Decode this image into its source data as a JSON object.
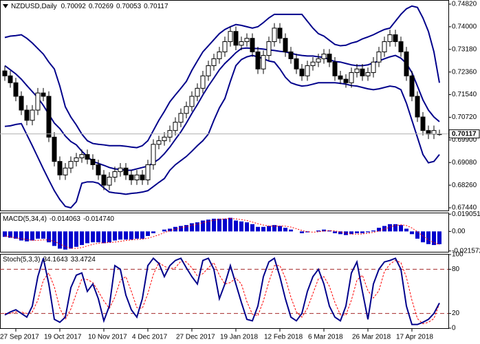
{
  "chart_data": [
    {
      "type": "candlestick",
      "title": "NZDUSD,Daily",
      "categories": [
        null,
        null,
        "27 Sep 2017",
        null,
        null,
        null,
        null,
        null,
        null,
        null,
        "19 Oct 2017",
        null,
        null,
        null,
        null,
        null,
        null,
        null,
        "10 Nov 2017",
        null,
        null,
        null,
        null,
        null,
        null,
        null,
        "4 Dec 2017",
        null,
        null,
        null,
        null,
        null,
        null,
        null,
        "27 Dec 2017",
        null,
        null,
        null,
        null,
        null,
        null,
        null,
        "19 Jan 2018",
        null,
        null,
        null,
        null,
        null,
        null,
        null,
        "12 Feb 2018",
        null,
        null,
        null,
        null,
        null,
        null,
        null,
        "6 Mar 2018",
        null,
        null,
        null,
        null,
        null,
        null,
        null,
        "26 Mar 2018",
        null,
        null,
        null,
        null,
        null,
        null,
        null,
        "17 Apr 2018",
        null,
        null,
        null,
        null,
        null
      ],
      "open": [
        0.724,
        0.7222,
        0.7197,
        0.7148,
        0.7098,
        0.7061,
        0.7098,
        0.716,
        0.7148,
        0.7,
        0.6912,
        0.6863,
        0.6888,
        0.6912,
        0.6925,
        0.6937,
        0.692,
        0.69,
        0.6863,
        0.6826,
        0.6855,
        0.6875,
        0.6888,
        0.6863,
        0.6845,
        0.6863,
        0.6845,
        0.69,
        0.6974,
        0.6987,
        0.7,
        0.7024,
        0.7054,
        0.7086,
        0.7111,
        0.7148,
        0.7177,
        0.7222,
        0.7259,
        0.7284,
        0.7309,
        0.7346,
        0.7383,
        0.7333,
        0.7346,
        0.7358,
        0.7309,
        0.7247,
        0.7296,
        0.7346,
        0.7395,
        0.7358,
        0.7309,
        0.7284,
        0.7247,
        0.7222,
        0.7259,
        0.7272,
        0.7284,
        0.7301,
        0.7272,
        0.7222,
        0.721,
        0.7197,
        0.7234,
        0.7247,
        0.7222,
        0.7234,
        0.7272,
        0.7309,
        0.7346,
        0.7371,
        0.7346,
        0.7309,
        0.7222,
        0.7148,
        0.7073,
        0.7024,
        0.7011,
        0.70092
      ],
      "high": [
        0.7258,
        0.724,
        0.7215,
        0.7166,
        0.7116,
        0.7116,
        0.7178,
        0.7178,
        0.7166,
        0.7018,
        0.693,
        0.6906,
        0.693,
        0.6943,
        0.6955,
        0.6955,
        0.6938,
        0.6918,
        0.6881,
        0.6873,
        0.6893,
        0.6906,
        0.6906,
        0.6881,
        0.6881,
        0.6881,
        0.6918,
        0.6992,
        0.7005,
        0.7018,
        0.7042,
        0.7072,
        0.7104,
        0.7129,
        0.7166,
        0.7195,
        0.724,
        0.7277,
        0.7302,
        0.7327,
        0.7364,
        0.7401,
        0.7401,
        0.7364,
        0.7376,
        0.7376,
        0.7327,
        0.7314,
        0.7364,
        0.7413,
        0.7413,
        0.7376,
        0.7327,
        0.7302,
        0.7265,
        0.7277,
        0.729,
        0.7302,
        0.7319,
        0.7319,
        0.729,
        0.724,
        0.7228,
        0.7252,
        0.7265,
        0.7265,
        0.7252,
        0.729,
        0.7327,
        0.7364,
        0.7389,
        0.7389,
        0.7364,
        0.7327,
        0.724,
        0.7166,
        0.7091,
        0.7042,
        0.7042,
        0.70269
      ],
      "low": [
        0.7204,
        0.7179,
        0.713,
        0.708,
        0.7043,
        0.7043,
        0.708,
        0.713,
        0.6982,
        0.6894,
        0.6845,
        0.6845,
        0.687,
        0.6894,
        0.6907,
        0.6902,
        0.6882,
        0.6845,
        0.6808,
        0.6808,
        0.6837,
        0.6857,
        0.6845,
        0.6827,
        0.6827,
        0.6827,
        0.6827,
        0.6882,
        0.6956,
        0.6969,
        0.6982,
        0.7006,
        0.7036,
        0.7068,
        0.7093,
        0.713,
        0.7159,
        0.7204,
        0.7241,
        0.7266,
        0.7291,
        0.7328,
        0.7315,
        0.7315,
        0.7328,
        0.7291,
        0.7229,
        0.7229,
        0.7278,
        0.7328,
        0.734,
        0.7291,
        0.7266,
        0.7229,
        0.7204,
        0.7204,
        0.7241,
        0.7254,
        0.7266,
        0.7254,
        0.7204,
        0.7192,
        0.7179,
        0.7179,
        0.7216,
        0.7204,
        0.7204,
        0.7216,
        0.7254,
        0.7291,
        0.7328,
        0.7328,
        0.7291,
        0.7204,
        0.713,
        0.7055,
        0.7006,
        0.6993,
        0.6993,
        0.70053
      ],
      "close": [
        0.7222,
        0.7197,
        0.7148,
        0.7098,
        0.7061,
        0.7098,
        0.716,
        0.7148,
        0.7,
        0.6912,
        0.6863,
        0.6888,
        0.6912,
        0.6925,
        0.6937,
        0.692,
        0.69,
        0.6863,
        0.6826,
        0.6855,
        0.6875,
        0.6888,
        0.6863,
        0.6845,
        0.6863,
        0.6845,
        0.69,
        0.6974,
        0.6987,
        0.7,
        0.7024,
        0.7054,
        0.7086,
        0.7111,
        0.7148,
        0.7177,
        0.7222,
        0.7259,
        0.7284,
        0.7309,
        0.7346,
        0.7383,
        0.7333,
        0.7346,
        0.7358,
        0.7309,
        0.7247,
        0.7296,
        0.7346,
        0.7395,
        0.7358,
        0.7309,
        0.7284,
        0.7247,
        0.7222,
        0.7259,
        0.7272,
        0.7284,
        0.7301,
        0.7272,
        0.7222,
        0.721,
        0.7197,
        0.7234,
        0.7247,
        0.7222,
        0.7234,
        0.7272,
        0.7309,
        0.7346,
        0.7371,
        0.7346,
        0.7309,
        0.7222,
        0.7148,
        0.7073,
        0.7024,
        0.7011,
        0.7024,
        0.70117
      ],
      "candle_colors": {
        "up": "#ffffff",
        "down": "#000000",
        "outline": "#000000"
      },
      "bands": {
        "color": "#00008b",
        "upper": [
          0.7361,
          0.7366,
          0.7368,
          0.7371,
          0.7358,
          0.7341,
          0.7321,
          0.7301,
          0.7272,
          0.7247,
          0.7185,
          0.711,
          0.7073,
          0.7044,
          0.7011,
          0.6987,
          0.6977,
          0.6974,
          0.6972,
          0.6969,
          0.6969,
          0.6969,
          0.6967,
          0.6964,
          0.6962,
          0.6969,
          0.6987,
          0.7024,
          0.7061,
          0.7093,
          0.7128,
          0.7153,
          0.7177,
          0.7202,
          0.7242,
          0.7276,
          0.7309,
          0.7331,
          0.7353,
          0.7375,
          0.739,
          0.74,
          0.7408,
          0.7405,
          0.74,
          0.7395,
          0.74,
          0.7415,
          0.7432,
          0.7445,
          0.7445,
          0.7445,
          0.7445,
          0.7445,
          0.7445,
          0.742,
          0.7395,
          0.7375,
          0.7366,
          0.7351,
          0.7336,
          0.7331,
          0.7333,
          0.7341,
          0.7346,
          0.7356,
          0.7363,
          0.7371,
          0.7381,
          0.739,
          0.7395,
          0.742,
          0.7445,
          0.7465,
          0.7475,
          0.747,
          0.7432,
          0.7383,
          0.7309,
          0.7197
        ],
        "middle": [
          0.7259,
          0.7244,
          0.7229,
          0.721,
          0.7187,
          0.7165,
          0.7143,
          0.7115,
          0.7083,
          0.7051,
          0.7031,
          0.7004,
          0.6984,
          0.6972,
          0.6949,
          0.693,
          0.6912,
          0.6905,
          0.6898,
          0.689,
          0.6885,
          0.6883,
          0.688,
          0.688,
          0.6885,
          0.689,
          0.6895,
          0.6907,
          0.692,
          0.694,
          0.6964,
          0.6992,
          0.7019,
          0.7051,
          0.7086,
          0.7118,
          0.7153,
          0.7185,
          0.7214,
          0.7244,
          0.7267,
          0.7286,
          0.7306,
          0.7321,
          0.7323,
          0.7321,
          0.7321,
          0.7319,
          0.7316,
          0.7314,
          0.7311,
          0.7309,
          0.7304,
          0.7299,
          0.7296,
          0.7294,
          0.7294,
          0.7291,
          0.7289,
          0.7281,
          0.7274,
          0.7272,
          0.7267,
          0.7262,
          0.7259,
          0.7259,
          0.7262,
          0.7269,
          0.7276,
          0.7284,
          0.7291,
          0.7296,
          0.7286,
          0.7267,
          0.7234,
          0.7185,
          0.7135,
          0.7098,
          0.7073,
          0.7056
        ],
        "lower": [
          0.7039,
          0.7041,
          0.7046,
          0.7049,
          0.7009,
          0.6969,
          0.6927,
          0.6885,
          0.6845,
          0.6806,
          0.6774,
          0.6749,
          0.6744,
          0.6766,
          0.6833,
          0.6838,
          0.6838,
          0.6833,
          0.6816,
          0.6801,
          0.6798,
          0.6796,
          0.6793,
          0.6796,
          0.6798,
          0.6801,
          0.6806,
          0.6821,
          0.6836,
          0.685,
          0.688,
          0.69,
          0.6915,
          0.693,
          0.6949,
          0.6969,
          0.6987,
          0.7011,
          0.7061,
          0.7106,
          0.714,
          0.7202,
          0.7259,
          0.7281,
          0.7291,
          0.7296,
          0.7291,
          0.7284,
          0.7276,
          0.7272,
          0.7247,
          0.7217,
          0.7197,
          0.719,
          0.7185,
          0.7187,
          0.7192,
          0.7197,
          0.7197,
          0.7197,
          0.7197,
          0.7195,
          0.7192,
          0.7187,
          0.7185,
          0.718,
          0.7175,
          0.7172,
          0.7175,
          0.718,
          0.7185,
          0.7182,
          0.7172,
          0.7123,
          0.7061,
          0.6999,
          0.6937,
          0.6907,
          0.6912,
          0.6937
        ]
      },
      "price_line_color": "#b0b0b0",
      "ylim": [
        0.67341,
        0.74944
      ],
      "yticks": [
        {
          "value": 0.7482,
          "label": "0.74820"
        },
        {
          "value": 0.74,
          "label": "0.74000"
        },
        {
          "value": 0.7318,
          "label": "0.73180"
        },
        {
          "value": 0.7236,
          "label": "0.72360"
        },
        {
          "value": 0.7154,
          "label": "0.71540"
        },
        {
          "value": 0.7072,
          "label": "0.70720"
        },
        {
          "value": 0.699,
          "label": "0.69900"
        },
        {
          "value": 0.6908,
          "label": "0.69080"
        },
        {
          "value": 0.6826,
          "label": "0.68260"
        },
        {
          "value": 0.6744,
          "label": "0.67440"
        }
      ]
    },
    {
      "type": "macd",
      "title": "MACD(5,34,4)",
      "histogram": {
        "color": "#0000cd",
        "values": [
          -0.006,
          -0.007,
          -0.008,
          -0.01,
          -0.011,
          -0.01,
          -0.008,
          -0.008,
          -0.012,
          -0.016,
          -0.019,
          -0.02,
          -0.019,
          -0.017,
          -0.015,
          -0.013,
          -0.012,
          -0.012,
          -0.013,
          -0.012,
          -0.01,
          -0.009,
          -0.009,
          -0.009,
          -0.008,
          -0.008,
          -0.005,
          -0.002,
          0.0,
          0.002,
          0.003,
          0.005,
          0.006,
          0.007,
          0.009,
          0.01,
          0.012,
          0.013,
          0.014,
          0.014,
          0.014,
          0.015,
          0.012,
          0.011,
          0.01,
          0.008,
          0.005,
          0.005,
          0.006,
          0.007,
          0.006,
          0.004,
          0.002,
          0.0,
          -0.002,
          -0.001,
          0.0,
          0.001,
          0.002,
          0.001,
          -0.002,
          -0.003,
          -0.004,
          -0.003,
          -0.002,
          -0.002,
          -0.001,
          0.001,
          0.004,
          0.006,
          0.008,
          0.008,
          0.007,
          0.003,
          -0.003,
          -0.008,
          -0.012,
          -0.014,
          -0.015,
          -0.014063
        ]
      },
      "signal": {
        "color": "#ff0000",
        "values": [
          -0.005,
          -0.006,
          -0.007,
          -0.008,
          -0.009,
          -0.0098,
          -0.0098,
          -0.0093,
          -0.0095,
          -0.011,
          -0.0138,
          -0.0168,
          -0.0185,
          -0.0188,
          -0.0178,
          -0.016,
          -0.0143,
          -0.013,
          -0.0125,
          -0.0123,
          -0.0118,
          -0.011,
          -0.01,
          -0.0093,
          -0.0088,
          -0.0085,
          -0.0075,
          -0.0058,
          -0.0038,
          -0.0013,
          0.0008,
          0.0025,
          0.004,
          0.0053,
          0.0068,
          0.008,
          0.0095,
          0.011,
          0.0123,
          0.0133,
          0.0138,
          0.0143,
          0.0138,
          0.013,
          0.012,
          0.0103,
          0.0085,
          0.007,
          0.006,
          0.0058,
          0.006,
          0.0058,
          0.0048,
          0.003,
          0.001,
          -0.0003,
          -0.0008,
          -0.0005,
          0.0005,
          0.001,
          0.0005,
          -0.0005,
          -0.0018,
          -0.003,
          -0.003,
          -0.0028,
          -0.002,
          -0.001,
          0.0005,
          0.0025,
          0.0048,
          0.0065,
          0.0073,
          0.0065,
          0.0038,
          -0.0003,
          -0.005,
          -0.0093,
          -0.0123,
          -0.01474
        ],
        "value_labels": [
          null,
          null,
          null,
          null,
          null,
          null,
          null,
          null,
          null,
          null,
          null,
          null,
          null,
          null,
          null,
          null,
          null,
          null,
          null,
          null,
          null,
          null,
          null,
          null,
          null,
          null,
          null,
          null,
          null,
          null,
          null,
          null,
          null,
          null,
          null,
          null,
          null,
          null,
          null,
          null,
          null,
          null,
          null,
          null,
          null,
          null,
          null,
          null,
          null,
          null,
          null,
          null,
          null,
          null,
          null,
          null,
          null,
          null,
          null,
          null,
          null,
          null,
          null,
          null,
          null,
          null,
          null,
          null,
          null,
          null,
          null,
          null,
          null,
          null,
          null,
          null,
          null,
          null,
          null,
          "-0.014740"
        ]
      },
      "ylim": [
        -0.0225,
        0.02
      ],
      "yticks": [
        0.019051,
        {
          "value": 0,
          "label": "0.00"
        },
        -0.021572
      ]
    },
    {
      "type": "stochastic",
      "title": "Stoch(5,3,3)",
      "main": {
        "color": "#00008b",
        "values": [
          18,
          22,
          25,
          20,
          15,
          30,
          70,
          95,
          60,
          12,
          8,
          15,
          55,
          72,
          75,
          50,
          60,
          40,
          10,
          30,
          85,
          80,
          45,
          25,
          15,
          40,
          85,
          95,
          88,
          70,
          85,
          92,
          95,
          82,
          70,
          60,
          92,
          95,
          80,
          40,
          60,
          85,
          60,
          35,
          12,
          10,
          30,
          70,
          90,
          95,
          70,
          40,
          15,
          10,
          20,
          50,
          70,
          80,
          60,
          30,
          15,
          10,
          30,
          75,
          90,
          50,
          12,
          60,
          80,
          90,
          92,
          95,
          80,
          30,
          5,
          5,
          8,
          12,
          20,
          34.1643
        ]
      },
      "signal": {
        "color": "#ff0000",
        "values": [
          20,
          20,
          22,
          22,
          20,
          22,
          38,
          65,
          75,
          56,
          27,
          12,
          26,
          47,
          67,
          66,
          62,
          50,
          37,
          27,
          42,
          65,
          70,
          50,
          28,
          27,
          47,
          73,
          89,
          84,
          81,
          82,
          91,
          90,
          82,
          71,
          74,
          82,
          89,
          72,
          60,
          62,
          68,
          60,
          36,
          19,
          17,
          37,
          63,
          85,
          85,
          68,
          42,
          22,
          15,
          27,
          47,
          67,
          70,
          57,
          35,
          18,
          18,
          38,
          65,
          72,
          51,
          41,
          51,
          77,
          87,
          92,
          89,
          69,
          38,
          13,
          6,
          8,
          13,
          33.4724
        ]
      },
      "level_color": "#a52a2a",
      "ylim": [
        0,
        100
      ],
      "yticks": [
        100,
        80,
        20,
        0
      ]
    }
  ]
}
